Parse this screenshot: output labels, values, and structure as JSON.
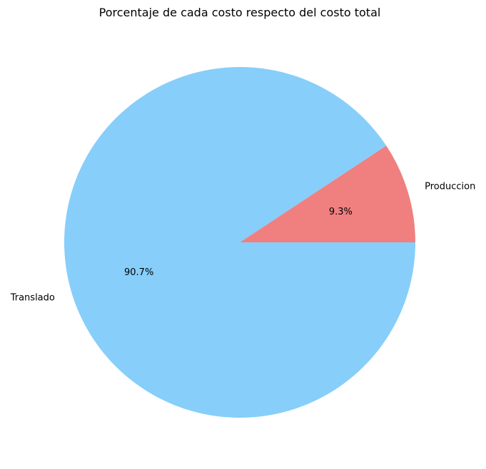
{
  "chart_data": {
    "type": "pie",
    "title": "Porcentaje de cada costo respecto del costo total",
    "slices": [
      {
        "label": "Produccion",
        "value": 9.3,
        "pct_label": "9.3%",
        "color": "#f08080"
      },
      {
        "label": "Translado",
        "value": 90.7,
        "pct_label": "90.7%",
        "color": "#87cefa"
      }
    ],
    "start_angle_deg": 0,
    "direction": "counterclockwise",
    "legend": "none"
  }
}
